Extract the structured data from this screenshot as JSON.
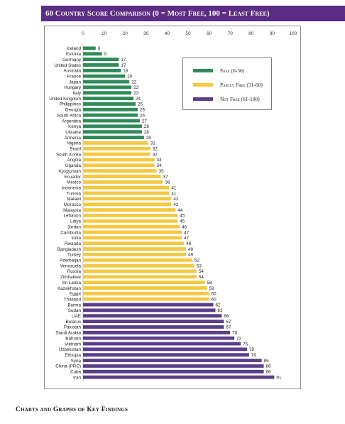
{
  "banner_title": "60 Country Score Comparison (0 = Most Free, 100 = Least Free)",
  "footer_heading": "Charts and Graphs of Key Findings",
  "chart_data": {
    "type": "bar",
    "orientation": "horizontal",
    "title": "60 Country Score Comparison (0 = Most Free, 100 = Least Free)",
    "xlim": [
      0,
      100
    ],
    "xticks": [
      "0",
      "10",
      "20",
      "30",
      "40",
      "50",
      "60",
      "70",
      "80",
      "90",
      "100"
    ],
    "grid": false,
    "legend_placement": "top-right",
    "colors": {
      "free": "#2e8b57",
      "partly_free": "#f4c842",
      "not_free": "#5b3e8a"
    },
    "legend": [
      {
        "key": "free",
        "label": "Free (0-30)"
      },
      {
        "key": "partly_free",
        "label": "Partly Free (31-60)"
      },
      {
        "key": "not_free",
        "label": "Not Free (61-100)"
      }
    ],
    "categories": [
      "Iceland",
      "Estonia",
      "Germany",
      "United States",
      "Australia",
      "France",
      "Japan",
      "Hungary",
      "Italy",
      "United Kingdom",
      "Philippines",
      "Georgia",
      "South Africa",
      "Argentina",
      "Kenya",
      "Ukraine",
      "Armenia",
      "Nigeria",
      "Brazil",
      "South Korea",
      "Angola",
      "Uganda",
      "Kyrgyzstan",
      "Ecuador",
      "Mexico",
      "Indonesia",
      "Tunisia",
      "Malawi",
      "Morocco",
      "Malaysia",
      "Lebanon",
      "Libya",
      "Jordan",
      "Cambodia",
      "India",
      "Rwanda",
      "Bangladesh",
      "Turkey",
      "Azerbaijan",
      "Venezuela",
      "Russia",
      "Zimbabwe",
      "Sri Lanka",
      "Kazakhstan",
      "Egypt",
      "Thailand",
      "Burma",
      "Sudan",
      "UAE",
      "Belarus",
      "Pakistan",
      "Saudi Arabia",
      "Bahrain",
      "Vietnam",
      "Uzbekistan",
      "Ethiopia",
      "Syria",
      "China (PRC)",
      "Cuba",
      "Iran"
    ],
    "values": [
      6,
      9,
      17,
      17,
      18,
      20,
      22,
      23,
      23,
      24,
      25,
      26,
      26,
      27,
      28,
      28,
      29,
      31,
      32,
      32,
      34,
      34,
      35,
      37,
      38,
      41,
      41,
      42,
      42,
      44,
      45,
      45,
      46,
      47,
      47,
      48,
      49,
      49,
      52,
      53,
      54,
      54,
      58,
      59,
      60,
      60,
      62,
      63,
      66,
      67,
      67,
      70,
      72,
      75,
      78,
      79,
      85,
      86,
      86,
      91
    ],
    "groups": [
      "free",
      "free",
      "free",
      "free",
      "free",
      "free",
      "free",
      "free",
      "free",
      "free",
      "free",
      "free",
      "free",
      "free",
      "free",
      "free",
      "free",
      "partly_free",
      "partly_free",
      "partly_free",
      "partly_free",
      "partly_free",
      "partly_free",
      "partly_free",
      "partly_free",
      "partly_free",
      "partly_free",
      "partly_free",
      "partly_free",
      "partly_free",
      "partly_free",
      "partly_free",
      "partly_free",
      "partly_free",
      "partly_free",
      "partly_free",
      "partly_free",
      "partly_free",
      "partly_free",
      "partly_free",
      "partly_free",
      "partly_free",
      "partly_free",
      "partly_free",
      "partly_free",
      "partly_free",
      "not_free",
      "not_free",
      "not_free",
      "not_free",
      "not_free",
      "not_free",
      "not_free",
      "not_free",
      "not_free",
      "not_free",
      "not_free",
      "not_free",
      "not_free",
      "not_free"
    ]
  }
}
